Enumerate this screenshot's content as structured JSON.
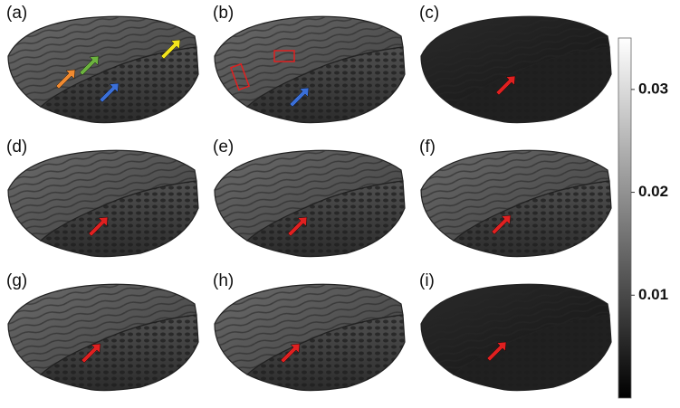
{
  "panels": [
    {
      "label": "(a)"
    },
    {
      "label": "(b)"
    },
    {
      "label": "(c)"
    },
    {
      "label": "(d)"
    },
    {
      "label": "(e)"
    },
    {
      "label": "(f)"
    },
    {
      "label": "(g)"
    },
    {
      "label": "(h)"
    },
    {
      "label": "(i)"
    }
  ],
  "colorbar": {
    "lim": [
      0,
      0.035
    ],
    "ticks": [
      0.01,
      0.02,
      0.03
    ]
  }
}
